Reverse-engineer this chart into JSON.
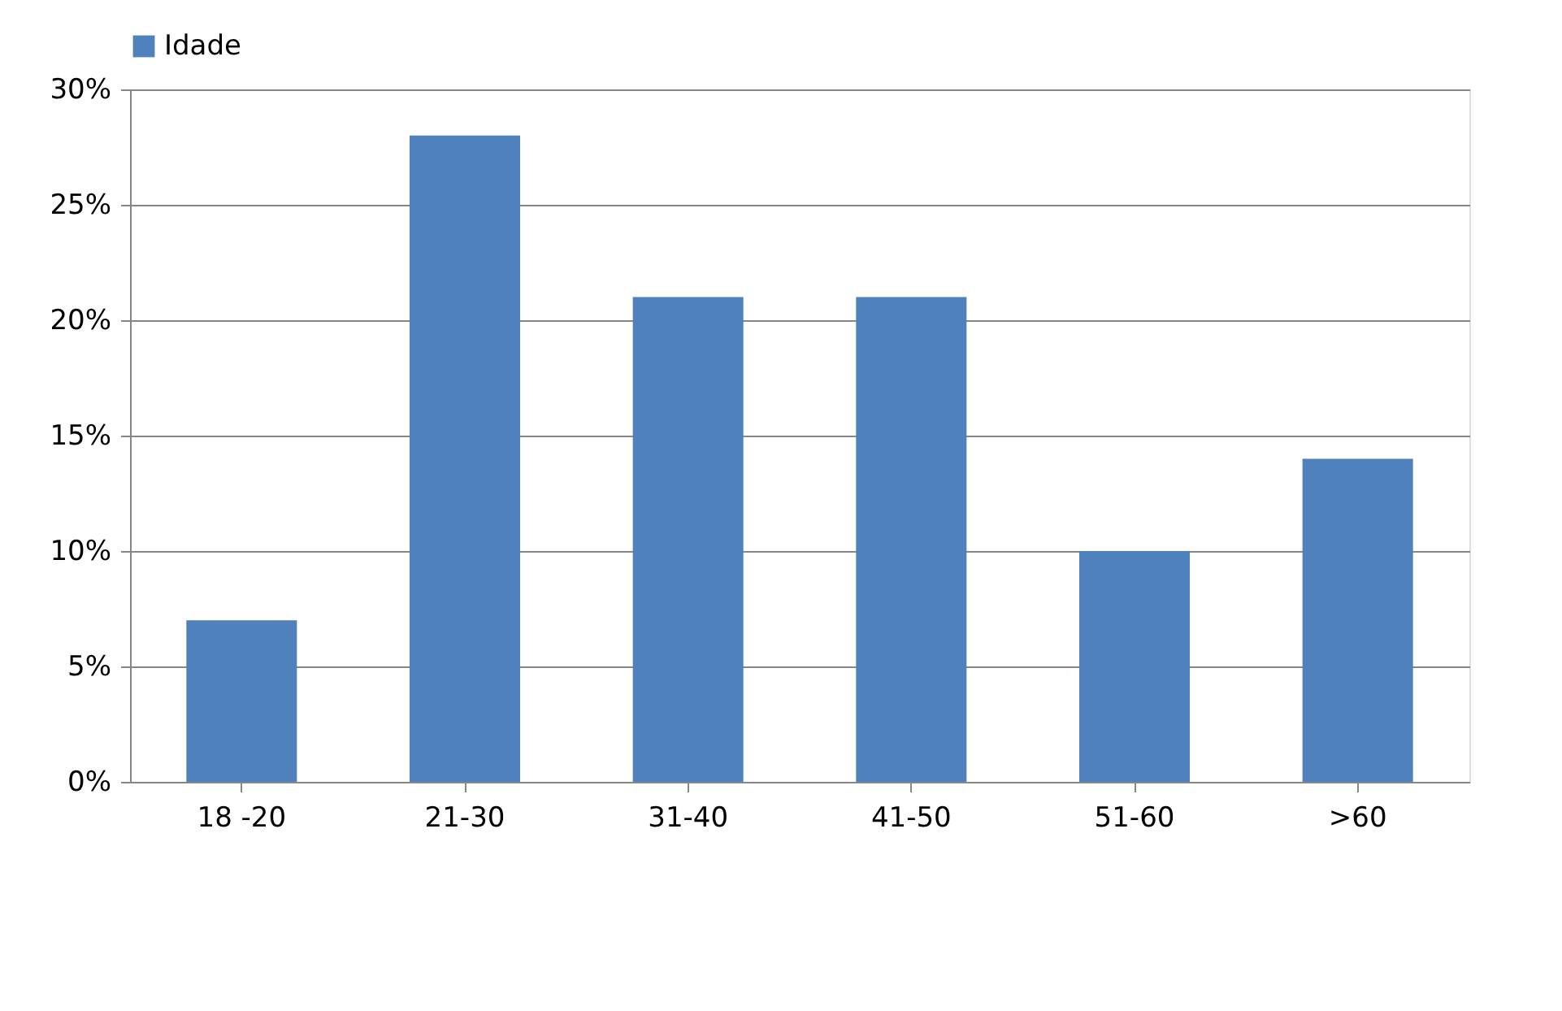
{
  "chart_data": {
    "type": "bar",
    "categories": [
      "18 -20",
      "21-30",
      "31-40",
      "41-50",
      "51-60",
      ">60"
    ],
    "series": [
      {
        "name": "Idade",
        "color": "#4f81bd",
        "values": [
          7,
          28,
          21,
          21,
          10,
          14
        ]
      }
    ],
    "ylim": [
      0,
      30
    ],
    "yticks": [
      {
        "value": 0,
        "label": "0%"
      },
      {
        "value": 5,
        "label": "5%"
      },
      {
        "value": 10,
        "label": "10%"
      },
      {
        "value": 15,
        "label": "15%"
      },
      {
        "value": 20,
        "label": "20%"
      },
      {
        "value": 25,
        "label": "25%"
      },
      {
        "value": 30,
        "label": "30%"
      }
    ],
    "grid": "y",
    "legend": "top"
  }
}
